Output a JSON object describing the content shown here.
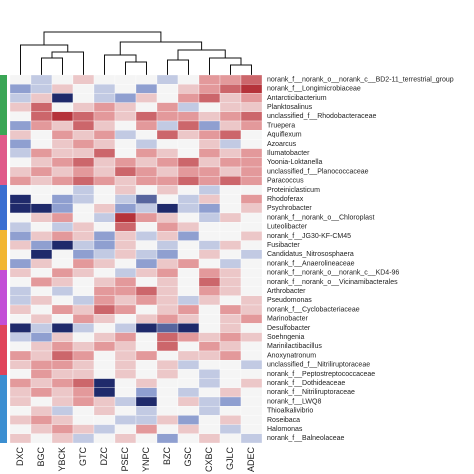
{
  "chart_data": {
    "type": "heatmap",
    "columns": [
      "DXC",
      "BGC",
      "YBCK",
      "GTC",
      "DZC",
      "PSEC",
      "YNPC",
      "BZC",
      "GSC",
      "CXBC",
      "GJLC",
      "ADEC"
    ],
    "rows": [
      "norank_f__norank_o__norank_c__BD2-11_terrestrial_group",
      "norank_f__Longimicrobiaceae",
      "Antarcticibacterium",
      "Planktosalinus",
      "unclassified_f__Rhodobacteraceae",
      "Truepera",
      "Aquiflexum",
      "Azoarcus",
      "Ilumatobacter",
      "Yoonia-Loktanella",
      "unclassified_f__Planococcaceae",
      "Paracoccus",
      "Proteiniclasticum",
      "Rhodoferax",
      "Psychrobacter",
      "norank_f__norank_o__Chloroplast",
      "Luteolibacter",
      "norank_f__JG30-KF-CM45",
      "Fusibacter",
      "Candidatus_Nitrososphaera",
      "norank_f__Anaerolineaceae",
      "norank_f__norank_o__norank_c__KD4-96",
      "norank_f__norank_o__Vicinamibacterales",
      "Arthrobacter",
      "Pseudomonas",
      "norank_f__Cyclobacteriaceae",
      "Marinobacter",
      "Desulfobacter",
      "Soehngenia",
      "Marinilactibacillus",
      "Anoxynatronum",
      "unclassified_f__Nitriliruptoraceae",
      "norank_f__Peptostreptococcaceae",
      "norank_f__Dothideaceae",
      "norank_f__Nitriliruptoraceae",
      "norank_f__LWQ8",
      "Thioalkalivibrio",
      "Roseibaca",
      "Halomonas",
      "norank_f__Balneolaceae"
    ],
    "values": [
      [
        0,
        -0.5,
        0,
        0.5,
        0,
        0,
        0,
        -0.5,
        0,
        1,
        1,
        1.5
      ],
      [
        -1,
        -0.5,
        0.5,
        0,
        -0.5,
        0,
        -1,
        0,
        0.5,
        1,
        1.5,
        2
      ],
      [
        -0.5,
        0.5,
        -2,
        0,
        -0.5,
        -1,
        0.5,
        0,
        1,
        1.5,
        0.5,
        1
      ],
      [
        0.5,
        1.5,
        0,
        0.5,
        1,
        0.5,
        0,
        1,
        -0.5,
        0,
        0.5,
        0.5
      ],
      [
        0,
        1.5,
        2,
        1.5,
        1,
        0.5,
        1.5,
        1,
        1,
        0.5,
        1,
        1.5
      ],
      [
        -1,
        1,
        0.5,
        1.5,
        0.5,
        0,
        1,
        -0.5,
        1.5,
        -1,
        0.5,
        1
      ],
      [
        0.5,
        0,
        1,
        0.5,
        1,
        -0.5,
        0,
        1.5,
        0.5,
        1,
        1.5,
        0
      ],
      [
        -1,
        0,
        0.5,
        1,
        0.5,
        0,
        -0.5,
        0,
        0,
        0.5,
        -0.5,
        0
      ],
      [
        -0.5,
        1,
        0.5,
        0.5,
        1.5,
        0,
        1,
        0.5,
        0,
        1,
        0.5,
        1
      ],
      [
        0,
        0.5,
        1,
        1.5,
        0.5,
        1,
        0.5,
        1,
        1.5,
        0.5,
        1,
        1
      ],
      [
        0.5,
        1,
        0.5,
        1,
        0.5,
        1.5,
        1,
        0.5,
        1,
        1,
        0.5,
        1
      ],
      [
        1,
        0.5,
        1,
        1.5,
        1,
        0.5,
        1,
        1,
        1.5,
        1,
        1.5,
        1
      ],
      [
        0,
        0,
        0,
        -0.5,
        0,
        0.5,
        0,
        0.5,
        0,
        -0.5,
        0,
        0
      ],
      [
        -2,
        0,
        -1,
        -0.5,
        0,
        -0.5,
        -1.5,
        0,
        -0.5,
        0.5,
        0,
        1
      ],
      [
        -2,
        -2,
        -1,
        0,
        0.5,
        -1,
        -0.5,
        -2,
        -0.5,
        -1,
        0,
        0.5
      ],
      [
        0,
        0.5,
        1,
        0,
        -0.5,
        2,
        1,
        0.5,
        0,
        -0.5,
        0.5,
        0
      ],
      [
        -0.5,
        0,
        -0.5,
        0.5,
        0,
        1.5,
        0,
        1,
        0.5,
        0,
        0,
        0
      ],
      [
        -1,
        0.5,
        1,
        0.5,
        -1,
        0.5,
        -0.5,
        0.5,
        -1,
        0,
        0,
        0.5
      ],
      [
        0.5,
        -1,
        -2,
        -0.5,
        -1,
        0.5,
        0,
        -0.5,
        0,
        -0.5,
        0.5,
        0
      ],
      [
        0,
        -2,
        0,
        -1,
        -0.5,
        0.5,
        -0.5,
        -1,
        0,
        0.5,
        0,
        -0.5
      ],
      [
        -1,
        0.5,
        0,
        1,
        0.5,
        0,
        -1,
        0.5,
        1,
        0,
        -0.5,
        0
      ],
      [
        0.5,
        0,
        1,
        0.5,
        0,
        -0.5,
        0.5,
        1,
        0,
        1,
        0.5,
        0
      ],
      [
        0,
        1,
        0.5,
        0,
        0.5,
        1,
        0,
        0.5,
        0,
        1.5,
        0.5,
        0
      ],
      [
        -0.5,
        0,
        -0.5,
        0,
        1,
        1,
        1.5,
        0.5,
        0,
        1,
        0.5,
        0
      ],
      [
        -0.5,
        0.5,
        0,
        -0.5,
        1,
        0.5,
        1,
        0.5,
        -0.5,
        0.5,
        0,
        0.5
      ],
      [
        0.5,
        0,
        1,
        0.5,
        1.5,
        1,
        0,
        0.5,
        1,
        0,
        1,
        0.5
      ],
      [
        0,
        0.5,
        0,
        1,
        0.5,
        0,
        0.5,
        1,
        0.5,
        0,
        0.5,
        1
      ],
      [
        -2,
        -0.5,
        -2,
        -0.5,
        0,
        -0.5,
        -2,
        -1.5,
        -2,
        0,
        0.5,
        0
      ],
      [
        -0.5,
        -1,
        0.5,
        0,
        0.5,
        1,
        0,
        1.5,
        1,
        0.5,
        1,
        0.5
      ],
      [
        0,
        0.5,
        1,
        0.5,
        1,
        0.5,
        0,
        1.5,
        0,
        1,
        0.5,
        0
      ],
      [
        1,
        0.5,
        1.5,
        1,
        0,
        0.5,
        1,
        0,
        0.5,
        0.5,
        1,
        0
      ],
      [
        0.5,
        1,
        1,
        0.5,
        0,
        0.5,
        0,
        0.5,
        -0.5,
        0,
        0,
        -0.5
      ],
      [
        0,
        1,
        0.5,
        0.5,
        0,
        0.5,
        0,
        0.5,
        0,
        -0.5,
        0,
        0
      ],
      [
        1,
        0.5,
        1,
        1.5,
        -2,
        0,
        0.5,
        0,
        0,
        -0.5,
        0,
        0.5
      ],
      [
        0.5,
        1,
        0.5,
        1,
        -2,
        0,
        -1,
        0,
        -0.5,
        0,
        0.5,
        0
      ],
      [
        0.5,
        0,
        0.5,
        1,
        0.5,
        -0.5,
        -2,
        0,
        0.5,
        -0.5,
        -1,
        0
      ],
      [
        0,
        0.5,
        -0.5,
        0,
        0.5,
        0,
        -0.5,
        0,
        0,
        -0.5,
        0,
        0
      ],
      [
        0.5,
        1,
        0.5,
        0,
        0,
        -0.5,
        -0.5,
        0.5,
        -1,
        0,
        0.5,
        0
      ],
      [
        0,
        0.5,
        1,
        0.5,
        -0.5,
        0,
        1,
        0,
        0.5,
        0,
        -0.5,
        0
      ],
      [
        0.5,
        0,
        0.5,
        -0.5,
        0,
        0.5,
        0,
        -1,
        0,
        0.5,
        0,
        -0.5
      ]
    ],
    "zlim": [
      -2,
      2
    ],
    "colors": [
      "#1f2a6b",
      "#8f9fd0",
      "#f5f5f5",
      "#e3999b",
      "#b5333a"
    ]
  }
}
